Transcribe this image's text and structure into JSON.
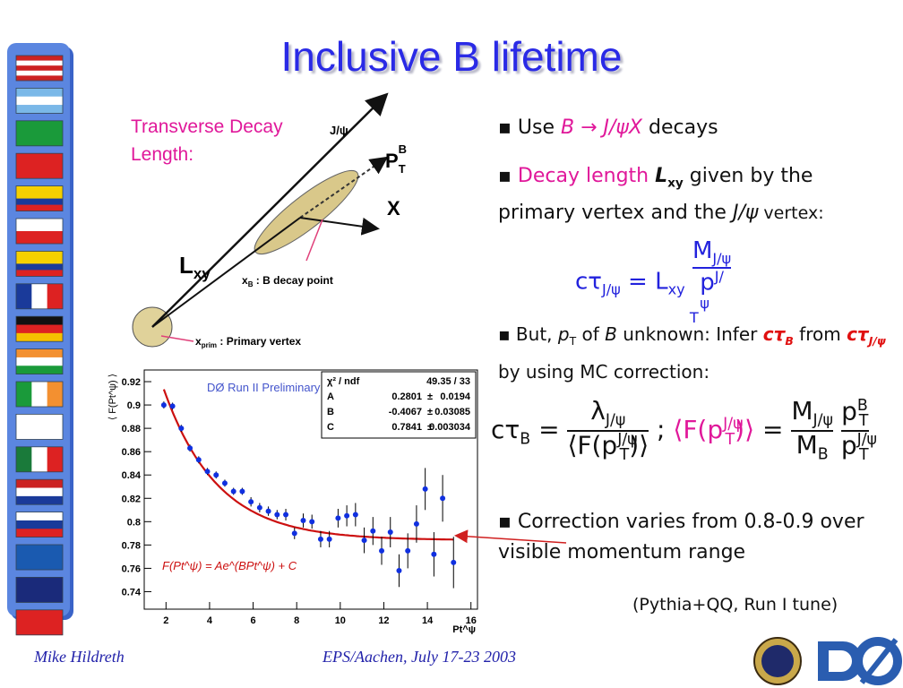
{
  "title": "Inclusive B lifetime",
  "diagram": {
    "caption": "Transverse Decay Length:",
    "jpsi": "J/ψ",
    "pt": "P",
    "pt_sub": "T",
    "pt_sup": "B",
    "x": "X",
    "lxy": "L",
    "lxy_sub": "xy",
    "decay_point": "x",
    "decay_point_sub": "B",
    "decay_point_text": " : B decay point",
    "prim": "x",
    "prim_sub": "prim",
    "prim_text": " : Primary vertex"
  },
  "bullets": [
    [
      "Use ",
      "B → J/ψX",
      " decays"
    ],
    [
      "Decay length ",
      "L",
      "xy",
      " given by the primary vertex and the ",
      "J/ψ",
      " vertex:"
    ],
    [
      "But, ",
      "p",
      "T",
      " of ",
      "B",
      " unknown: Infer ",
      "cτ",
      "B",
      " from ",
      "cτ",
      "J/ψ",
      " by using MC correction:"
    ],
    [
      "Correction varies from 0.8-0.9 over visible momentum range"
    ]
  ],
  "formula1": {
    "lhs": "cτ",
    "lhs_sub": "J/ψ",
    "eq": "=",
    "l": "L",
    "l_sub": "xy",
    "num": "M",
    "num_sub": "J/ψ",
    "den": "p",
    "den_sub": "T",
    "den_sup": "J/ψ"
  },
  "formula2": {
    "lhs": "cτ",
    "lhs_sub": "B",
    "eq": "=",
    "num": "λ",
    "num_sub": "J/ψ",
    "open": "⟨",
    "close": "⟩",
    "f": "F(p",
    "f_sub": "T",
    "f_sup": "J/ψ",
    "f_close": ")",
    "sep": ";",
    "m": "M",
    "m_sub": "J/ψ",
    "mb": "M",
    "mb_sub": "B",
    "p": "p",
    "p_sub": "T",
    "p_sup": "B",
    "q": "p",
    "q_sub": "T",
    "q_sup": "J/ψ"
  },
  "note": "(Pythia+QQ, Run I tune)",
  "footer": {
    "author": "Mike Hildreth",
    "event": "EPS/Aachen, July 17-23 2003"
  },
  "plot": {
    "type": "scatter",
    "annotation": "DØ Run II Preliminary",
    "y_label": "⟨ F(Pt^ψ) ⟩",
    "x_label": "Pt^ψ",
    "formula": "F(Pt^ψ) = Ae^(BPt^ψ) + C",
    "xlim": [
      1,
      16.3
    ],
    "ylim": [
      0.725,
      0.93
    ],
    "xticks": [
      2,
      4,
      6,
      8,
      10,
      12,
      14,
      16
    ],
    "yticks": [
      0.74,
      0.76,
      0.78,
      0.8,
      0.82,
      0.84,
      0.86,
      0.88,
      0.9,
      0.92
    ],
    "color": "#1030e0",
    "fit_color": "#cc1010",
    "x": [
      1.9,
      2.3,
      2.7,
      3.1,
      3.5,
      3.9,
      4.3,
      4.7,
      5.1,
      5.5,
      5.9,
      6.3,
      6.7,
      7.1,
      7.5,
      7.9,
      8.3,
      8.7,
      9.1,
      9.5,
      9.9,
      10.3,
      10.7,
      11.1,
      11.5,
      11.9,
      12.3,
      12.7,
      13.1,
      13.5,
      13.9,
      14.3,
      14.7,
      15.2
    ],
    "y": [
      0.9,
      0.899,
      0.88,
      0.863,
      0.853,
      0.843,
      0.84,
      0.833,
      0.826,
      0.826,
      0.817,
      0.812,
      0.809,
      0.806,
      0.806,
      0.79,
      0.801,
      0.8,
      0.785,
      0.785,
      0.803,
      0.805,
      0.806,
      0.784,
      0.792,
      0.775,
      0.791,
      0.758,
      0.775,
      0.798,
      0.828,
      0.772,
      0.82,
      0.765
    ],
    "err": [
      0.003,
      0.003,
      0.003,
      0.003,
      0.003,
      0.003,
      0.003,
      0.003,
      0.003,
      0.003,
      0.004,
      0.004,
      0.004,
      0.004,
      0.005,
      0.005,
      0.006,
      0.006,
      0.007,
      0.007,
      0.008,
      0.009,
      0.01,
      0.011,
      0.012,
      0.012,
      0.013,
      0.014,
      0.015,
      0.016,
      0.018,
      0.019,
      0.02,
      0.022
    ],
    "plus_minus": "±",
    "chi2": {
      "name": "χ² / ndf",
      "value": "49.35 / 33"
    },
    "stats": [
      {
        "name": "A",
        "value": 0.2801,
        "error": 0.0194
      },
      {
        "name": "B",
        "value": -0.4067,
        "error": 0.03085
      },
      {
        "name": "C",
        "value": 0.7841,
        "error": 0.003034
      }
    ]
  }
}
